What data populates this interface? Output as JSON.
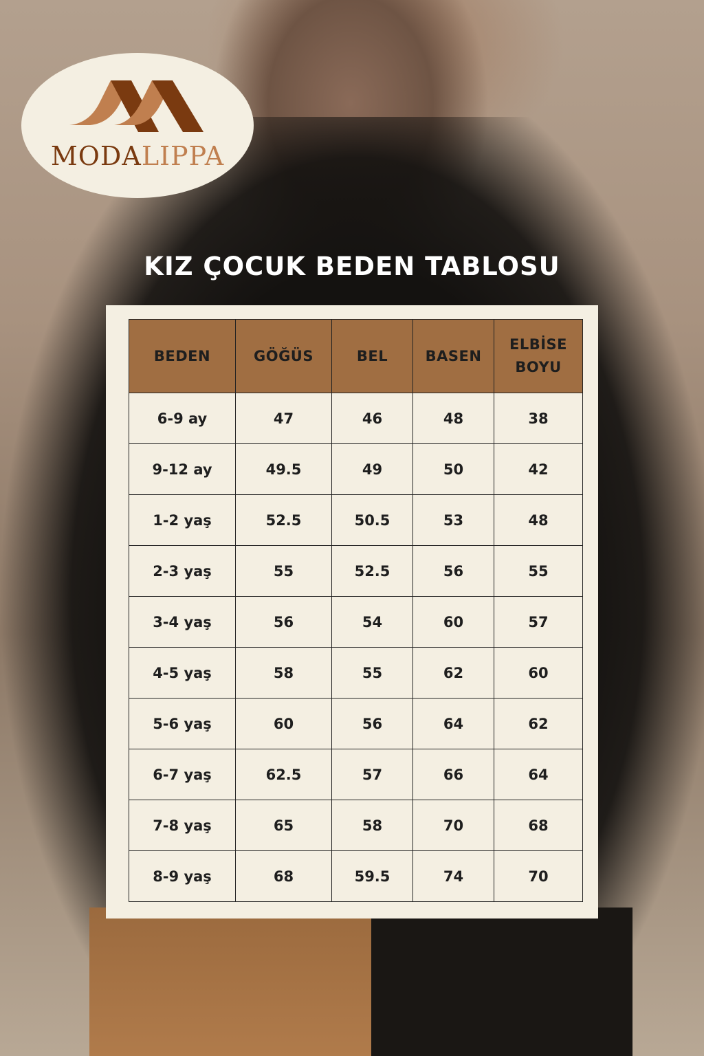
{
  "brand": {
    "name": "MODALIPPA",
    "name_part1": "MODA",
    "name_part2": "LIPPA"
  },
  "title": "KIZ ÇOCUK BEDEN TABLOSU",
  "colors": {
    "header": "#a06e42",
    "panel": "#f4efe2",
    "logo_dark": "#7a3a10",
    "logo_light": "#c07f4f"
  },
  "table": {
    "headers": [
      "BEDEN",
      "GÖĞÜS",
      "BEL",
      "BASEN",
      "ELBİSE BOYU"
    ],
    "rows": [
      [
        "6-9 ay",
        "47",
        "46",
        "48",
        "38"
      ],
      [
        "9-12 ay",
        "49.5",
        "49",
        "50",
        "42"
      ],
      [
        "1-2 yaş",
        "52.5",
        "50.5",
        "53",
        "48"
      ],
      [
        "2-3 yaş",
        "55",
        "52.5",
        "56",
        "55"
      ],
      [
        "3-4 yaş",
        "56",
        "54",
        "60",
        "57"
      ],
      [
        "4-5 yaş",
        "58",
        "55",
        "62",
        "60"
      ],
      [
        "5-6 yaş",
        "60",
        "56",
        "64",
        "62"
      ],
      [
        "6-7 yaş",
        "62.5",
        "57",
        "66",
        "64"
      ],
      [
        "7-8 yaş",
        "65",
        "58",
        "70",
        "68"
      ],
      [
        "8-9 yaş",
        "68",
        "59.5",
        "74",
        "70"
      ]
    ]
  }
}
